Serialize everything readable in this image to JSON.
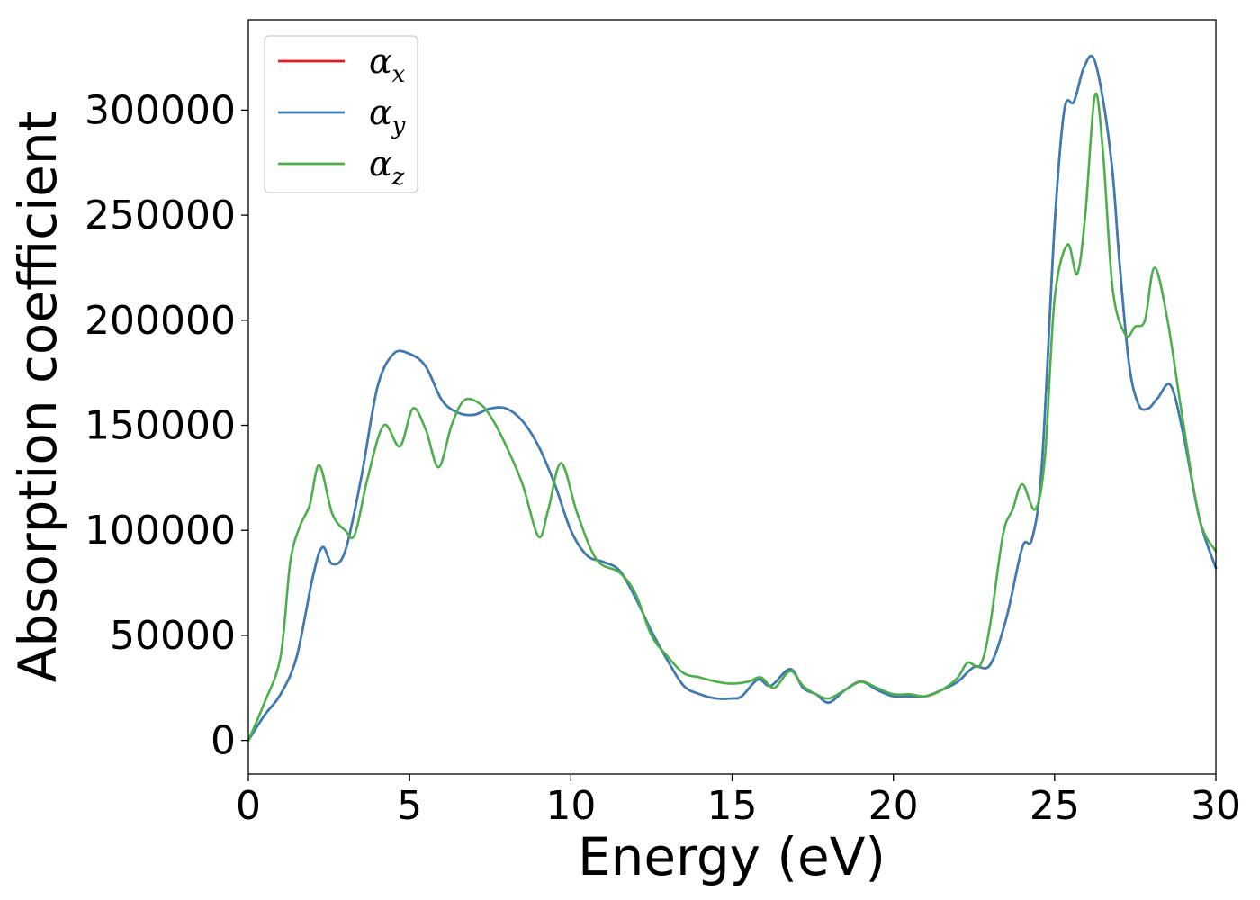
{
  "chart_data": {
    "type": "line",
    "title": "",
    "xlabel": "Energy (eV)",
    "ylabel": "Absorption coefficient",
    "xlim": [
      0,
      30
    ],
    "ylim": [
      -16000,
      343000
    ],
    "xticks": [
      0,
      5,
      10,
      15,
      20,
      25,
      30
    ],
    "xtick_labels": [
      "0",
      "5",
      "10",
      "15",
      "20",
      "25",
      "30"
    ],
    "yticks": [
      0,
      50000,
      100000,
      150000,
      200000,
      250000,
      300000
    ],
    "ytick_labels": [
      "0",
      "50000",
      "100000",
      "150000",
      "200000",
      "250000",
      "300000"
    ],
    "grid": false,
    "legend_position": "top-left",
    "series": [
      {
        "name": "α_x",
        "legend_symbol": "α",
        "legend_sub": "x",
        "color": "#e41a1c",
        "x": [
          0,
          0.5,
          1.0,
          1.5,
          2.0,
          2.3,
          2.6,
          3.0,
          3.5,
          4.0,
          4.5,
          5.0,
          5.5,
          6.0,
          6.5,
          7.0,
          7.5,
          8.0,
          8.5,
          9.0,
          9.5,
          10.0,
          10.5,
          11.0,
          11.5,
          12.0,
          12.5,
          13.0,
          13.5,
          14.0,
          14.5,
          15.0,
          15.3,
          15.8,
          16.2,
          16.8,
          17.2,
          17.6,
          18.0,
          18.5,
          19.0,
          19.5,
          20.0,
          20.5,
          21.0,
          21.5,
          22.0,
          22.5,
          23.0,
          23.5,
          24.0,
          24.3,
          24.6,
          25.0,
          25.3,
          25.6,
          25.9,
          26.2,
          26.5,
          26.8,
          27.0,
          27.3,
          27.6,
          27.9,
          28.2,
          28.6,
          29.0,
          29.5,
          30.0
        ],
        "y": [
          0,
          12000,
          22000,
          40000,
          78000,
          92000,
          84000,
          90000,
          125000,
          168000,
          184000,
          184000,
          178000,
          162000,
          156000,
          155000,
          158000,
          158000,
          152000,
          140000,
          122000,
          100000,
          88000,
          85000,
          81000,
          68000,
          52000,
          38000,
          26000,
          22000,
          20000,
          20000,
          21000,
          29000,
          26000,
          34000,
          25000,
          22000,
          18000,
          24000,
          28000,
          24000,
          21000,
          21000,
          21000,
          24000,
          28000,
          35000,
          36000,
          58000,
          92000,
          96000,
          130000,
          245000,
          300000,
          304000,
          320000,
          325000,
          305000,
          270000,
          230000,
          180000,
          160000,
          158000,
          163000,
          169000,
          145000,
          105000,
          82000
        ]
      },
      {
        "name": "α_y",
        "legend_symbol": "α",
        "legend_sub": "y",
        "color": "#377eb8",
        "x": [
          0,
          0.5,
          1.0,
          1.5,
          2.0,
          2.3,
          2.6,
          3.0,
          3.5,
          4.0,
          4.5,
          5.0,
          5.5,
          6.0,
          6.5,
          7.0,
          7.5,
          8.0,
          8.5,
          9.0,
          9.5,
          10.0,
          10.5,
          11.0,
          11.5,
          12.0,
          12.5,
          13.0,
          13.5,
          14.0,
          14.5,
          15.0,
          15.3,
          15.8,
          16.2,
          16.8,
          17.2,
          17.6,
          18.0,
          18.5,
          19.0,
          19.5,
          20.0,
          20.5,
          21.0,
          21.5,
          22.0,
          22.5,
          23.0,
          23.5,
          24.0,
          24.3,
          24.6,
          25.0,
          25.3,
          25.6,
          25.9,
          26.2,
          26.5,
          26.8,
          27.0,
          27.3,
          27.6,
          27.9,
          28.2,
          28.6,
          29.0,
          29.5,
          30.0
        ],
        "y": [
          0,
          12000,
          22000,
          40000,
          78000,
          92000,
          84000,
          90000,
          125000,
          168000,
          184000,
          184000,
          178000,
          162000,
          156000,
          155000,
          158000,
          158000,
          152000,
          140000,
          122000,
          100000,
          88000,
          85000,
          81000,
          68000,
          52000,
          38000,
          26000,
          22000,
          20000,
          20000,
          21000,
          29000,
          26000,
          34000,
          25000,
          22000,
          18000,
          24000,
          28000,
          24000,
          21000,
          21000,
          21000,
          24000,
          28000,
          35000,
          36000,
          58000,
          92000,
          96000,
          130000,
          245000,
          300000,
          304000,
          320000,
          325000,
          305000,
          270000,
          230000,
          180000,
          160000,
          158000,
          163000,
          169000,
          145000,
          105000,
          82000
        ]
      },
      {
        "name": "α_z",
        "legend_symbol": "α",
        "legend_sub": "z",
        "color": "#4daf4a",
        "x": [
          0,
          0.5,
          1.0,
          1.3,
          1.6,
          1.9,
          2.2,
          2.6,
          3.0,
          3.3,
          3.7,
          4.2,
          4.7,
          5.1,
          5.5,
          5.9,
          6.3,
          6.7,
          7.2,
          7.6,
          8.0,
          8.5,
          9.0,
          9.3,
          9.7,
          10.2,
          10.8,
          11.5,
          12.0,
          12.5,
          13.0,
          13.5,
          14.0,
          14.5,
          15.0,
          15.5,
          15.9,
          16.3,
          16.8,
          17.2,
          17.6,
          18.0,
          18.5,
          19.0,
          19.5,
          20.0,
          20.5,
          21.0,
          21.5,
          22.0,
          22.3,
          22.7,
          23.0,
          23.4,
          23.7,
          24.0,
          24.4,
          24.7,
          25.0,
          25.4,
          25.7,
          25.95,
          26.25,
          26.5,
          26.8,
          27.2,
          27.5,
          27.8,
          28.1,
          28.5,
          29.0,
          29.5,
          30.0
        ],
        "y": [
          0,
          18000,
          40000,
          85000,
          102000,
          112000,
          131000,
          108000,
          100000,
          98000,
          125000,
          150000,
          140000,
          158000,
          148000,
          130000,
          150000,
          162000,
          160000,
          152000,
          140000,
          122000,
          97000,
          110000,
          132000,
          108000,
          86000,
          80000,
          70000,
          50000,
          40000,
          32000,
          30000,
          28000,
          27000,
          28000,
          30000,
          25000,
          33000,
          26000,
          22000,
          20000,
          24000,
          28000,
          25000,
          22000,
          22000,
          21000,
          24000,
          30000,
          37000,
          36000,
          55000,
          98000,
          110000,
          122000,
          110000,
          135000,
          210000,
          236000,
          222000,
          250000,
          307000,
          280000,
          215000,
          193000,
          197000,
          200000,
          225000,
          200000,
          150000,
          105000,
          90000
        ]
      }
    ]
  }
}
